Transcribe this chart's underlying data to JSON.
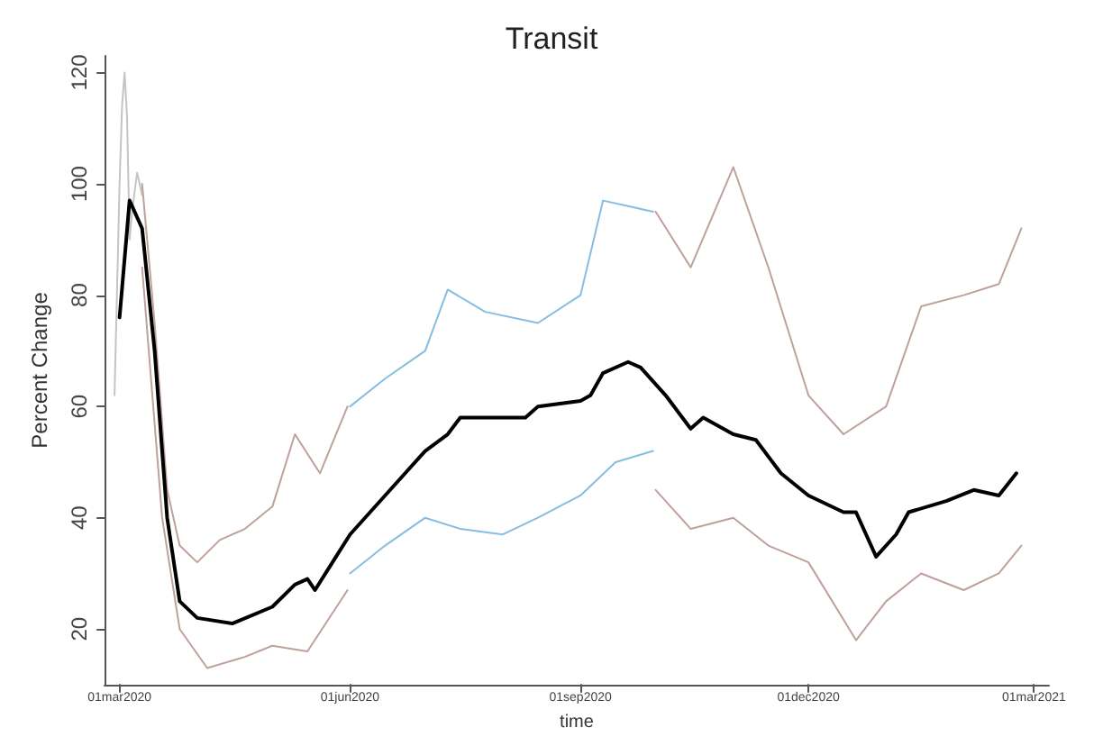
{
  "chart_data": {
    "type": "line",
    "title": "Transit",
    "xlabel": "time",
    "ylabel": "Percent Change",
    "xlim": [
      "2020-02-24",
      "2021-03-07"
    ],
    "ylim": [
      10,
      123
    ],
    "xticks": [
      {
        "value": "2020-03-01",
        "label": "01mar2020"
      },
      {
        "value": "2020-06-01",
        "label": "01jun2020"
      },
      {
        "value": "2020-09-01",
        "label": "01sep2020"
      },
      {
        "value": "2020-12-01",
        "label": "01dec2020"
      },
      {
        "value": "2021-03-01",
        "label": "01mar2021"
      }
    ],
    "yticks": [
      20,
      40,
      60,
      80,
      100,
      120
    ],
    "grid": false,
    "marker": "none",
    "line_style": "solid",
    "series": [
      {
        "color": "#c4c4c4",
        "x": [
          "2020-02-28",
          "2020-03-01",
          "2020-03-02",
          "2020-03-03",
          "2020-03-04",
          "2020-03-05",
          "2020-03-06",
          "2020-03-08",
          "2020-03-10"
        ],
        "values": [
          62,
          100,
          114,
          120,
          112,
          90,
          95,
          102,
          98
        ]
      },
      {
        "color": "#bfa19b",
        "x": [
          "2020-03-10",
          "2020-03-15",
          "2020-03-20",
          "2020-03-25",
          "2020-04-01",
          "2020-04-10",
          "2020-04-20",
          "2020-05-01",
          "2020-05-10",
          "2020-05-20",
          "2020-05-31"
        ],
        "values": [
          100,
          75,
          45,
          35,
          32,
          36,
          38,
          42,
          55,
          48,
          60
        ]
      },
      {
        "color": "#bfa19b",
        "x": [
          "2020-03-10",
          "2020-03-18",
          "2020-03-25",
          "2020-04-05",
          "2020-04-20",
          "2020-05-01",
          "2020-05-15",
          "2020-05-31"
        ],
        "values": [
          85,
          40,
          20,
          13,
          15,
          17,
          16,
          27
        ]
      },
      {
        "color": "#85bde3",
        "x": [
          "2020-06-01",
          "2020-06-15",
          "2020-07-01",
          "2020-07-10",
          "2020-07-25",
          "2020-08-15",
          "2020-09-01",
          "2020-09-10",
          "2020-09-20",
          "2020-09-30"
        ],
        "values": [
          60,
          65,
          70,
          81,
          77,
          75,
          80,
          97,
          96,
          95
        ]
      },
      {
        "color": "#85bde3",
        "x": [
          "2020-06-01",
          "2020-06-15",
          "2020-07-01",
          "2020-07-15",
          "2020-08-01",
          "2020-08-15",
          "2020-09-01",
          "2020-09-15",
          "2020-09-30"
        ],
        "values": [
          30,
          35,
          40,
          38,
          37,
          40,
          44,
          50,
          52
        ]
      },
      {
        "color": "#bfa19b",
        "x": [
          "2020-10-01",
          "2020-10-15",
          "2020-11-01",
          "2020-11-15",
          "2020-12-01",
          "2020-12-15",
          "2021-01-01",
          "2021-01-15",
          "2021-02-01",
          "2021-02-15",
          "2021-02-24"
        ],
        "values": [
          95,
          85,
          103,
          85,
          62,
          55,
          60,
          78,
          80,
          82,
          92
        ]
      },
      {
        "color": "#bfa19b",
        "x": [
          "2020-10-01",
          "2020-10-15",
          "2020-11-01",
          "2020-11-15",
          "2020-12-01",
          "2020-12-20",
          "2021-01-01",
          "2021-01-15",
          "2021-02-01",
          "2021-02-15",
          "2021-02-24"
        ],
        "values": [
          45,
          38,
          40,
          35,
          32,
          18,
          25,
          30,
          27,
          30,
          35
        ]
      },
      {
        "color": "#000000",
        "x": [
          "2020-03-01",
          "2020-03-05",
          "2020-03-10",
          "2020-03-15",
          "2020-03-20",
          "2020-03-25",
          "2020-04-01",
          "2020-04-15",
          "2020-05-01",
          "2020-05-10",
          "2020-05-15",
          "2020-05-18",
          "2020-05-25",
          "2020-06-01",
          "2020-06-15",
          "2020-07-01",
          "2020-07-10",
          "2020-07-15",
          "2020-08-01",
          "2020-08-10",
          "2020-08-15",
          "2020-09-01",
          "2020-09-05",
          "2020-09-10",
          "2020-09-20",
          "2020-09-25",
          "2020-10-05",
          "2020-10-15",
          "2020-10-20",
          "2020-11-01",
          "2020-11-10",
          "2020-11-20",
          "2020-12-01",
          "2020-12-15",
          "2020-12-20",
          "2020-12-28",
          "2021-01-05",
          "2021-01-10",
          "2021-01-25",
          "2021-02-05",
          "2021-02-15",
          "2021-02-22"
        ],
        "values": [
          76,
          97,
          92,
          70,
          40,
          25,
          22,
          21,
          24,
          28,
          29,
          27,
          32,
          37,
          44,
          52,
          55,
          58,
          58,
          58,
          60,
          61,
          62,
          66,
          68,
          67,
          62,
          56,
          58,
          55,
          54,
          48,
          44,
          41,
          41,
          33,
          37,
          41,
          43,
          45,
          44,
          48
        ]
      }
    ]
  }
}
